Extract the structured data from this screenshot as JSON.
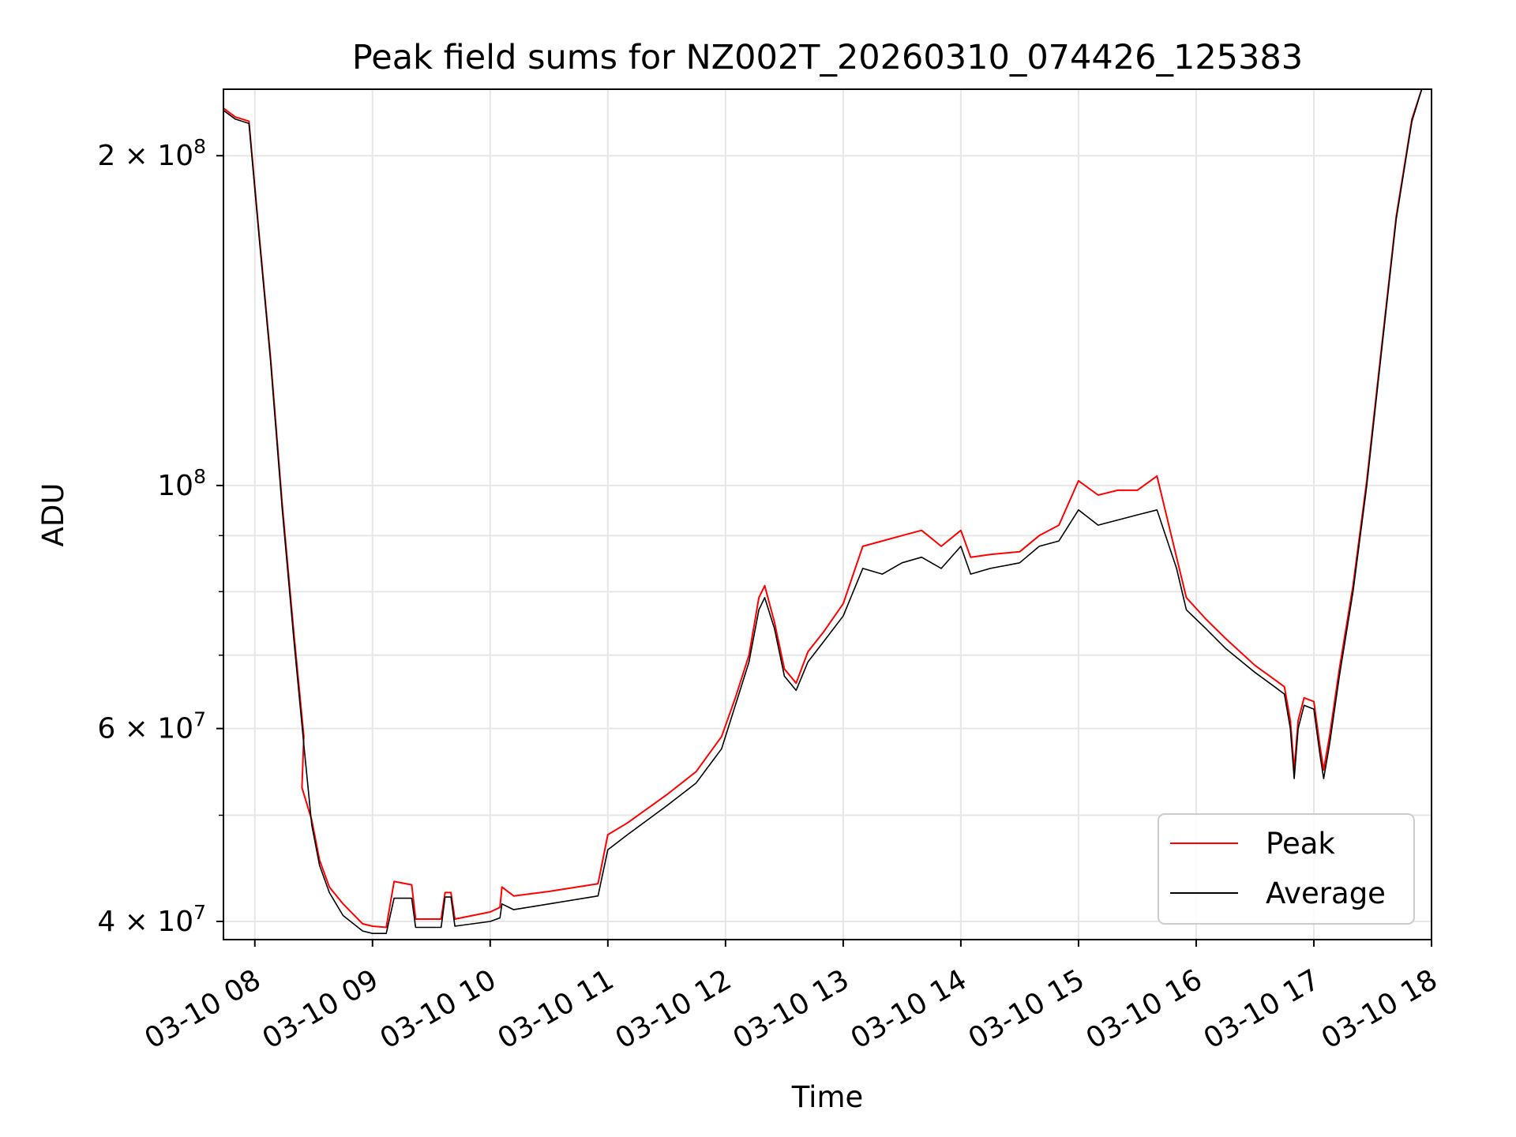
{
  "chart_data": {
    "type": "line",
    "title": "Peak field sums for NZ002T_20260310_074426_125383",
    "xlabel": "Time",
    "ylabel": "ADU",
    "y_scale": "log",
    "ylim": [
      38500000,
      230000000
    ],
    "xlim": [
      "2026-03-10 07:44",
      "2026-03-10 18:00"
    ],
    "x_tick_labels": [
      "03-10 08",
      "03-10 09",
      "03-10 10",
      "03-10 11",
      "03-10 12",
      "03-10 13",
      "03-10 14",
      "03-10 15",
      "03-10 16",
      "03-10 17",
      "03-10 18"
    ],
    "y_tick_labels": [
      {
        "value": 40000000,
        "base": "4 × 10",
        "exp": "7"
      },
      {
        "value": 60000000,
        "base": "6 × 10",
        "exp": "7"
      },
      {
        "value": 100000000,
        "base": "10",
        "exp": "8"
      },
      {
        "value": 200000000,
        "base": "2 × 10",
        "exp": "8"
      }
    ],
    "grid": true,
    "legend_position": "lower-right",
    "series": [
      {
        "name": "Average",
        "color": "#000000",
        "points": [
          [
            "2026-03-10 07:44",
            220000000
          ],
          [
            "2026-03-10 07:50",
            216000000
          ],
          [
            "2026-03-10 07:57",
            214000000
          ],
          [
            "2026-03-10 08:02",
            170000000
          ],
          [
            "2026-03-10 08:08",
            130000000
          ],
          [
            "2026-03-10 08:14",
            95000000
          ],
          [
            "2026-03-10 08:20",
            72000000
          ],
          [
            "2026-03-10 08:25",
            58000000
          ],
          [
            "2026-03-10 08:29",
            49000000
          ],
          [
            "2026-03-10 08:33",
            45000000
          ],
          [
            "2026-03-10 08:38",
            42500000
          ],
          [
            "2026-03-10 08:45",
            40500000
          ],
          [
            "2026-03-10 08:55",
            39200000
          ],
          [
            "2026-03-10 09:00",
            39000000
          ],
          [
            "2026-03-10 09:07",
            39000000
          ],
          [
            "2026-03-10 09:11",
            42000000
          ],
          [
            "2026-03-10 09:20",
            42000000
          ],
          [
            "2026-03-10 09:22",
            39500000
          ],
          [
            "2026-03-10 09:35",
            39500000
          ],
          [
            "2026-03-10 09:37",
            42100000
          ],
          [
            "2026-03-10 09:40",
            42100000
          ],
          [
            "2026-03-10 09:42",
            39600000
          ],
          [
            "2026-03-10 10:00",
            40000000
          ],
          [
            "2026-03-10 10:05",
            40300000
          ],
          [
            "2026-03-10 10:06",
            41500000
          ],
          [
            "2026-03-10 10:12",
            41000000
          ],
          [
            "2026-03-10 10:30",
            41500000
          ],
          [
            "2026-03-10 10:55",
            42200000
          ],
          [
            "2026-03-10 11:00",
            46500000
          ],
          [
            "2026-03-10 11:10",
            48000000
          ],
          [
            "2026-03-10 11:30",
            51000000
          ],
          [
            "2026-03-10 11:45",
            53500000
          ],
          [
            "2026-03-10 11:58",
            57500000
          ],
          [
            "2026-03-10 12:05",
            63000000
          ],
          [
            "2026-03-10 12:12",
            69000000
          ],
          [
            "2026-03-10 12:17",
            77000000
          ],
          [
            "2026-03-10 12:20",
            79000000
          ],
          [
            "2026-03-10 12:25",
            74000000
          ],
          [
            "2026-03-10 12:30",
            67000000
          ],
          [
            "2026-03-10 12:36",
            65000000
          ],
          [
            "2026-03-10 12:42",
            69000000
          ],
          [
            "2026-03-10 12:50",
            72000000
          ],
          [
            "2026-03-10 13:00",
            76000000
          ],
          [
            "2026-03-10 13:10",
            84000000
          ],
          [
            "2026-03-10 13:20",
            83000000
          ],
          [
            "2026-03-10 13:30",
            85000000
          ],
          [
            "2026-03-10 13:40",
            86000000
          ],
          [
            "2026-03-10 13:50",
            84000000
          ],
          [
            "2026-03-10 14:00",
            88000000
          ],
          [
            "2026-03-10 14:05",
            83000000
          ],
          [
            "2026-03-10 14:15",
            84000000
          ],
          [
            "2026-03-10 14:30",
            85000000
          ],
          [
            "2026-03-10 14:40",
            88000000
          ],
          [
            "2026-03-10 14:50",
            89000000
          ],
          [
            "2026-03-10 15:00",
            95000000
          ],
          [
            "2026-03-10 15:10",
            92000000
          ],
          [
            "2026-03-10 15:20",
            93000000
          ],
          [
            "2026-03-10 15:30",
            94000000
          ],
          [
            "2026-03-10 15:40",
            95000000
          ],
          [
            "2026-03-10 15:50",
            84000000
          ],
          [
            "2026-03-10 15:55",
            77000000
          ],
          [
            "2026-03-10 16:05",
            74000000
          ],
          [
            "2026-03-10 16:15",
            71000000
          ],
          [
            "2026-03-10 16:30",
            67500000
          ],
          [
            "2026-03-10 16:40",
            65500000
          ],
          [
            "2026-03-10 16:45",
            64500000
          ],
          [
            "2026-03-10 16:48",
            60000000
          ],
          [
            "2026-03-10 16:50",
            54000000
          ],
          [
            "2026-03-10 16:52",
            60000000
          ],
          [
            "2026-03-10 16:55",
            63000000
          ],
          [
            "2026-03-10 17:00",
            62500000
          ],
          [
            "2026-03-10 17:03",
            57000000
          ],
          [
            "2026-03-10 17:05",
            54000000
          ],
          [
            "2026-03-10 17:08",
            58000000
          ],
          [
            "2026-03-10 17:13",
            67000000
          ],
          [
            "2026-03-10 17:20",
            80000000
          ],
          [
            "2026-03-10 17:27",
            100000000
          ],
          [
            "2026-03-10 17:35",
            135000000
          ],
          [
            "2026-03-10 17:42",
            175000000
          ],
          [
            "2026-03-10 17:50",
            215000000
          ],
          [
            "2026-03-10 17:55",
            230000000
          ],
          [
            "2026-03-10 18:00",
            230000000
          ]
        ]
      },
      {
        "name": "Peak",
        "color": "#ff0000",
        "points": [
          [
            "2026-03-10 07:44",
            221000000
          ],
          [
            "2026-03-10 07:50",
            217000000
          ],
          [
            "2026-03-10 07:57",
            215000000
          ],
          [
            "2026-03-10 08:02",
            171000000
          ],
          [
            "2026-03-10 08:08",
            131000000
          ],
          [
            "2026-03-10 08:14",
            96000000
          ],
          [
            "2026-03-10 08:20",
            73000000
          ],
          [
            "2026-03-10 08:25",
            59000000
          ],
          [
            "2026-03-10 08:24",
            53000000
          ],
          [
            "2026-03-10 08:29",
            49500000
          ],
          [
            "2026-03-10 08:33",
            45500000
          ],
          [
            "2026-03-10 08:38",
            43000000
          ],
          [
            "2026-03-10 08:45",
            41500000
          ],
          [
            "2026-03-10 08:55",
            39800000
          ],
          [
            "2026-03-10 09:00",
            39600000
          ],
          [
            "2026-03-10 09:07",
            39500000
          ],
          [
            "2026-03-10 09:11",
            43500000
          ],
          [
            "2026-03-10 09:20",
            43200000
          ],
          [
            "2026-03-10 09:22",
            40200000
          ],
          [
            "2026-03-10 09:35",
            40200000
          ],
          [
            "2026-03-10 09:37",
            42500000
          ],
          [
            "2026-03-10 09:40",
            42500000
          ],
          [
            "2026-03-10 09:42",
            40200000
          ],
          [
            "2026-03-10 10:00",
            40800000
          ],
          [
            "2026-03-10 10:05",
            41200000
          ],
          [
            "2026-03-10 10:06",
            43000000
          ],
          [
            "2026-03-10 10:12",
            42200000
          ],
          [
            "2026-03-10 10:30",
            42600000
          ],
          [
            "2026-03-10 10:55",
            43300000
          ],
          [
            "2026-03-10 11:00",
            48000000
          ],
          [
            "2026-03-10 11:10",
            49200000
          ],
          [
            "2026-03-10 11:30",
            52200000
          ],
          [
            "2026-03-10 11:45",
            54800000
          ],
          [
            "2026-03-10 11:58",
            59000000
          ],
          [
            "2026-03-10 12:05",
            64000000
          ],
          [
            "2026-03-10 12:12",
            70000000
          ],
          [
            "2026-03-10 12:17",
            79000000
          ],
          [
            "2026-03-10 12:20",
            81000000
          ],
          [
            "2026-03-10 12:25",
            75000000
          ],
          [
            "2026-03-10 12:30",
            68000000
          ],
          [
            "2026-03-10 12:36",
            66000000
          ],
          [
            "2026-03-10 12:42",
            70500000
          ],
          [
            "2026-03-10 12:50",
            73500000
          ],
          [
            "2026-03-10 13:00",
            78000000
          ],
          [
            "2026-03-10 13:10",
            88000000
          ],
          [
            "2026-03-10 13:20",
            89000000
          ],
          [
            "2026-03-10 13:30",
            90000000
          ],
          [
            "2026-03-10 13:40",
            91000000
          ],
          [
            "2026-03-10 13:50",
            88000000
          ],
          [
            "2026-03-10 14:00",
            91000000
          ],
          [
            "2026-03-10 14:05",
            86000000
          ],
          [
            "2026-03-10 14:15",
            86500000
          ],
          [
            "2026-03-10 14:30",
            87000000
          ],
          [
            "2026-03-10 14:40",
            90000000
          ],
          [
            "2026-03-10 14:50",
            92000000
          ],
          [
            "2026-03-10 15:00",
            101000000
          ],
          [
            "2026-03-10 15:10",
            98000000
          ],
          [
            "2026-03-10 15:20",
            99000000
          ],
          [
            "2026-03-10 15:30",
            99000000
          ],
          [
            "2026-03-10 15:40",
            102000000
          ],
          [
            "2026-03-10 15:50",
            86000000
          ],
          [
            "2026-03-10 15:55",
            79000000
          ],
          [
            "2026-03-10 16:05",
            75500000
          ],
          [
            "2026-03-10 16:15",
            72500000
          ],
          [
            "2026-03-10 16:30",
            68500000
          ],
          [
            "2026-03-10 16:40",
            66500000
          ],
          [
            "2026-03-10 16:45",
            65500000
          ],
          [
            "2026-03-10 16:48",
            61000000
          ],
          [
            "2026-03-10 16:50",
            55000000
          ],
          [
            "2026-03-10 16:52",
            61000000
          ],
          [
            "2026-03-10 16:55",
            64000000
          ],
          [
            "2026-03-10 17:00",
            63500000
          ],
          [
            "2026-03-10 17:03",
            58000000
          ],
          [
            "2026-03-10 17:05",
            55000000
          ],
          [
            "2026-03-10 17:08",
            59000000
          ],
          [
            "2026-03-10 17:13",
            68000000
          ],
          [
            "2026-03-10 17:20",
            81000000
          ],
          [
            "2026-03-10 17:27",
            101000000
          ],
          [
            "2026-03-10 17:35",
            136000000
          ],
          [
            "2026-03-10 17:42",
            176000000
          ],
          [
            "2026-03-10 17:50",
            216000000
          ],
          [
            "2026-03-10 17:55",
            230000000
          ],
          [
            "2026-03-10 18:00",
            230000000
          ]
        ]
      }
    ]
  }
}
